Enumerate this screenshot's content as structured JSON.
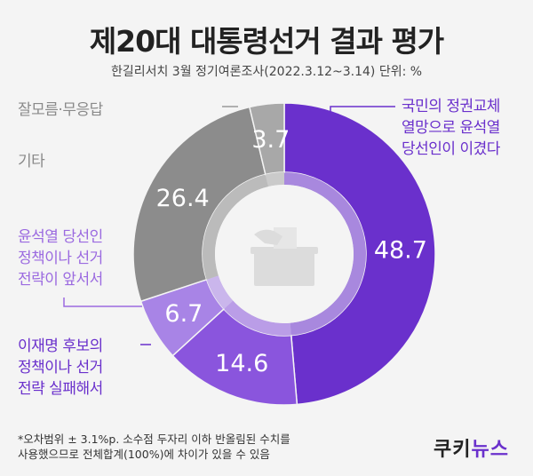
{
  "title": "제20대 대통령선거 결과 평가",
  "subtitle": "한길리서치  3월 정기여론조사(2022.3.12~3.14) 단위: %",
  "chart_data": {
    "type": "pie",
    "variant": "donut",
    "slices": [
      {
        "label": "국민의 정권교체\n열망으로 윤석열\n당선인이 이겼다",
        "value": 48.7,
        "color": "#6a30cc"
      },
      {
        "label": "이재명 후보의\n정책이나 선거\n전략 실패해서",
        "value": 14.6,
        "color": "#8a55dd"
      },
      {
        "label": "윤석열 당선인\n정책이나 선거\n전략이 앞서서",
        "value": 6.7,
        "color": "#a884e6"
      },
      {
        "label": "기타",
        "value": 26.4,
        "color": "#8c8c8c"
      },
      {
        "label": "잘모름·무응답",
        "value": 3.7,
        "color": "#a8a8a8"
      }
    ]
  },
  "footnote": "*오차범위 ± 3.1%p. 소수점 두자리 이하 반올림된 수치를\n  사용했으므로 전체합계(100%)에 차이가 있을 수 있음",
  "logo": {
    "part1": "쿠키",
    "part2": "뉴스"
  }
}
